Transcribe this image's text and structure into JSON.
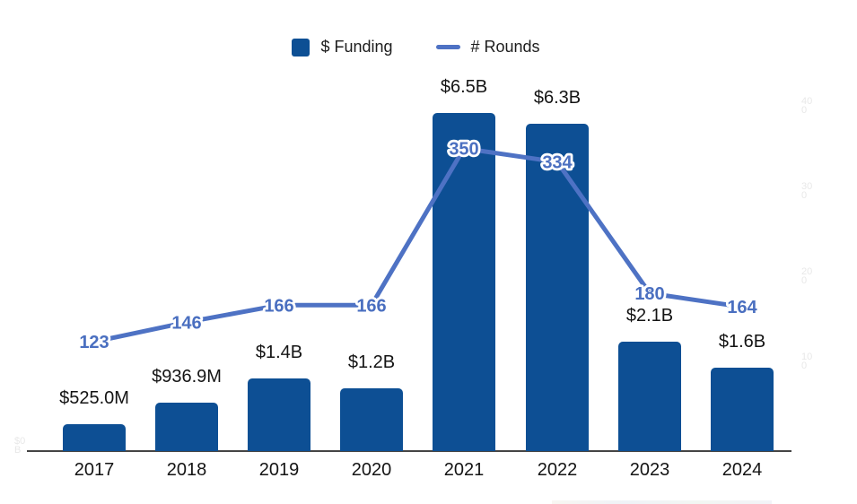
{
  "page": {
    "background": "#ffffff"
  },
  "legend": {
    "funding_label": "$ Funding",
    "rounds_label": "# Rounds"
  },
  "colors": {
    "bar": "#0d4f94",
    "line": "#4e72c4",
    "line_label": "#4a6fc0",
    "text": "#141414",
    "axis_line": "#454545",
    "faint_tick": "#e8e8e8"
  },
  "chart_data": {
    "type": "bar",
    "subtype": "combo bar+line, dual axis",
    "title": "",
    "categories": [
      "2017",
      "2018",
      "2019",
      "2020",
      "2021",
      "2022",
      "2023",
      "2024"
    ],
    "series": [
      {
        "name": "$ Funding",
        "type": "bar",
        "axis": "left",
        "unit": "USD",
        "values_billions": [
          0.525,
          0.9369,
          1.4,
          1.2,
          6.5,
          6.3,
          2.1,
          1.6
        ],
        "labels": [
          "$525.0M",
          "$936.9M",
          "$1.4B",
          "$1.2B",
          "$6.5B",
          "$6.3B",
          "$2.1B",
          "$1.6B"
        ]
      },
      {
        "name": "# Rounds",
        "type": "line",
        "axis": "right",
        "values": [
          123,
          146,
          166,
          166,
          350,
          334,
          180,
          164
        ]
      }
    ],
    "left_axis": {
      "visible": "barely (cropped faint label at baseline)",
      "bottom_label_lines": [
        "$0",
        "B"
      ]
    },
    "right_axis": {
      "ticks": [
        400,
        300,
        200,
        100
      ],
      "wrapped_labels": [
        [
          "40",
          "0"
        ],
        [
          "30",
          "0"
        ],
        [
          "20",
          "0"
        ],
        [
          "10",
          "0"
        ]
      ],
      "ylim": [
        0,
        400
      ]
    },
    "grid": false,
    "legend_position": "top-center",
    "data_labels": "above bars (black) and on line vertices (blue with white halo)"
  }
}
